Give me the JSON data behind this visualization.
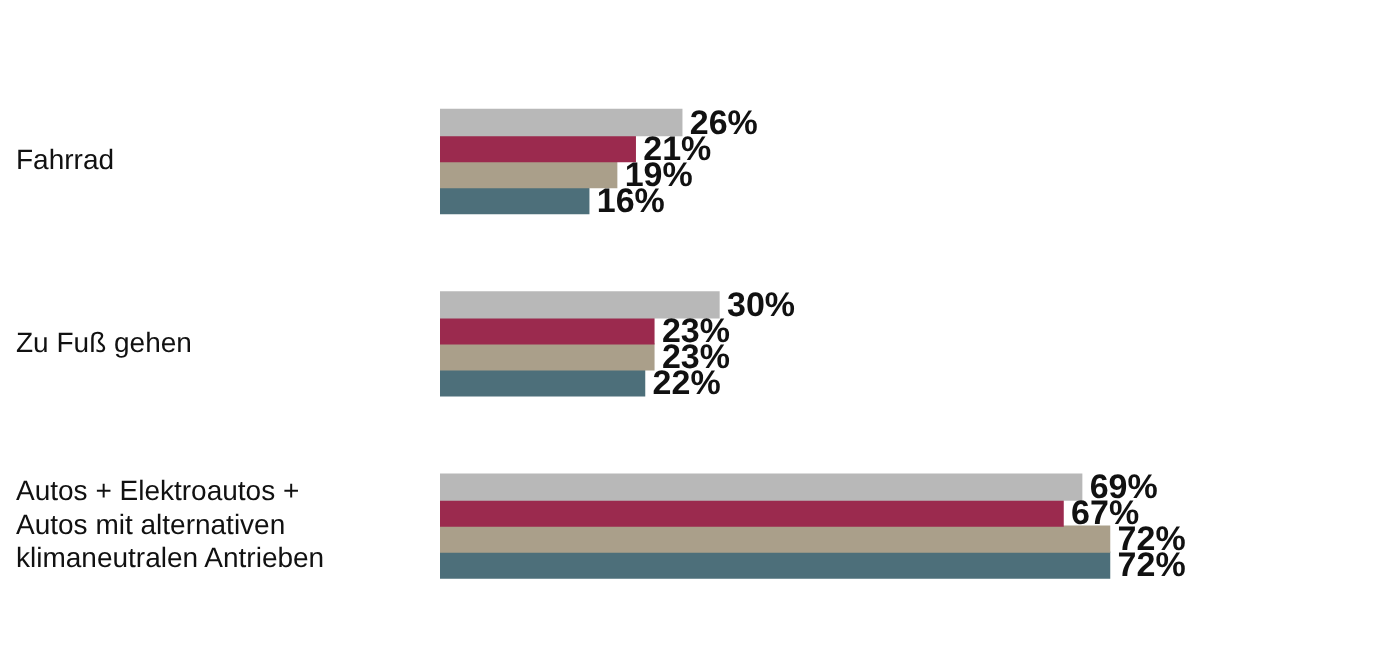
{
  "chart_data": {
    "type": "bar",
    "orientation": "horizontal",
    "categories": [
      "Fahrrad",
      "Zu Fuß gehen",
      "Autos + Elektroautos + Autos mit alternativen klimaneutralen Antrieben"
    ],
    "series": [
      {
        "color": "#b8b8b8",
        "values": [
          26,
          30,
          69
        ],
        "value_labels": [
          "26%",
          "30%",
          "69%"
        ]
      },
      {
        "color": "#9b2a4e",
        "values": [
          21,
          23,
          67
        ],
        "value_labels": [
          "21%",
          "23%",
          "67%"
        ]
      },
      {
        "color": "#aa9f8a",
        "values": [
          19,
          23,
          72
        ],
        "value_labels": [
          "19%",
          "23%",
          "72%"
        ]
      },
      {
        "color": "#4d6f7a",
        "values": [
          16,
          22,
          72
        ],
        "value_labels": [
          "16%",
          "22%",
          "72%"
        ]
      }
    ],
    "legend": false
  }
}
